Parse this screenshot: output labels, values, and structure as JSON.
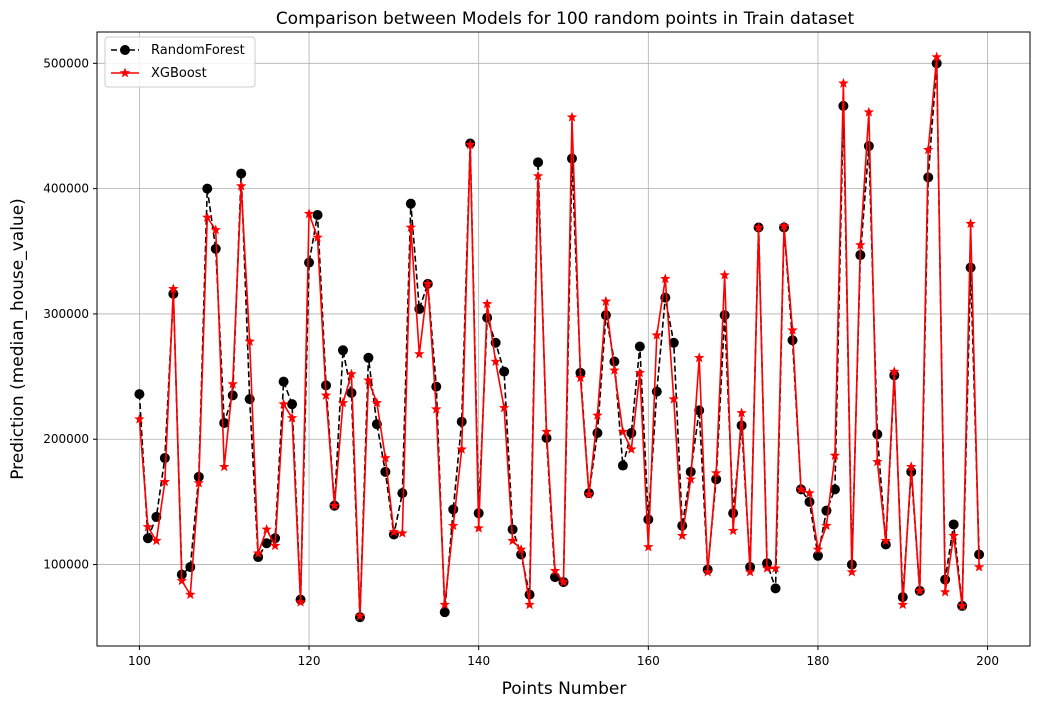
{
  "chart_data": {
    "type": "line",
    "title": "Comparison between Models for 100 random points in Train dataset",
    "xlabel": "Points Number",
    "ylabel": "Prediction (median_house_value)",
    "xlim": [
      95,
      205
    ],
    "ylim": [
      35000,
      525000
    ],
    "xticks": [
      100,
      120,
      140,
      160,
      180,
      200
    ],
    "yticks": [
      100000,
      200000,
      300000,
      400000,
      500000
    ],
    "grid": true,
    "legend_position": "top-left",
    "x": [
      100,
      101,
      102,
      103,
      104,
      105,
      106,
      107,
      108,
      109,
      110,
      111,
      112,
      113,
      114,
      115,
      116,
      117,
      118,
      119,
      120,
      121,
      122,
      123,
      124,
      125,
      126,
      127,
      128,
      129,
      130,
      131,
      132,
      133,
      134,
      135,
      136,
      137,
      138,
      139,
      140,
      141,
      142,
      143,
      144,
      145,
      146,
      147,
      148,
      149,
      150,
      151,
      152,
      153,
      154,
      155,
      156,
      157,
      158,
      159,
      160,
      161,
      162,
      163,
      164,
      165,
      166,
      167,
      168,
      169,
      170,
      171,
      172,
      173,
      174,
      175,
      176,
      177,
      178,
      179,
      180,
      181,
      182,
      183,
      184,
      185,
      186,
      187,
      188,
      189,
      190,
      191,
      192,
      193,
      194,
      195,
      196,
      197,
      198,
      199
    ],
    "series": [
      {
        "name": "RandomForest",
        "color": "#000000",
        "line_style": "dashed",
        "marker": "circle",
        "values": [
          236000,
          121000,
          138000,
          185000,
          316000,
          92000,
          98000,
          170000,
          400000,
          352000,
          213000,
          235000,
          412000,
          232000,
          106000,
          117000,
          121000,
          246000,
          228000,
          72000,
          341000,
          379000,
          243000,
          147000,
          271000,
          237000,
          58000,
          265000,
          212000,
          174000,
          124000,
          157000,
          388000,
          304000,
          324000,
          242000,
          62000,
          144000,
          214000,
          436000,
          141000,
          297000,
          277000,
          254000,
          128000,
          108000,
          76000,
          421000,
          201000,
          90000,
          86000,
          424000,
          253000,
          157000,
          205000,
          299000,
          262000,
          179000,
          205000,
          274000,
          136000,
          238000,
          313000,
          277000,
          131000,
          174000,
          223000,
          96000,
          168000,
          299000,
          141000,
          211000,
          98000,
          369000,
          101000,
          81000,
          369000,
          279000,
          160000,
          150000,
          107000,
          143000,
          160000,
          466000,
          100000,
          347000,
          434000,
          204000,
          116000,
          251000,
          74000,
          174000,
          79000,
          409000,
          500000,
          88000,
          132000,
          67000,
          337000,
          108000
        ]
      },
      {
        "name": "XGBoost",
        "color": "#ff0000",
        "line_style": "solid",
        "marker": "star",
        "values": [
          216000,
          130000,
          119000,
          166000,
          320000,
          87000,
          76000,
          165000,
          377000,
          367000,
          178000,
          244000,
          402000,
          278000,
          109000,
          128000,
          115000,
          228000,
          217000,
          70000,
          380000,
          361000,
          235000,
          147000,
          229000,
          252000,
          59000,
          247000,
          229000,
          185000,
          126000,
          125000,
          369000,
          268000,
          324000,
          224000,
          68000,
          131000,
          192000,
          435000,
          129000,
          308000,
          262000,
          225000,
          119000,
          112000,
          68000,
          410000,
          206000,
          95000,
          86000,
          457000,
          249000,
          156000,
          219000,
          310000,
          255000,
          206000,
          192000,
          253000,
          114000,
          283000,
          328000,
          232000,
          123000,
          168000,
          265000,
          94000,
          173000,
          331000,
          127000,
          221000,
          94000,
          369000,
          97000,
          97000,
          370000,
          287000,
          160000,
          157000,
          112000,
          131000,
          187000,
          484000,
          94000,
          355000,
          461000,
          182000,
          119000,
          254000,
          68000,
          178000,
          79000,
          431000,
          505000,
          78000,
          123000,
          67000,
          372000,
          98000
        ]
      }
    ]
  }
}
